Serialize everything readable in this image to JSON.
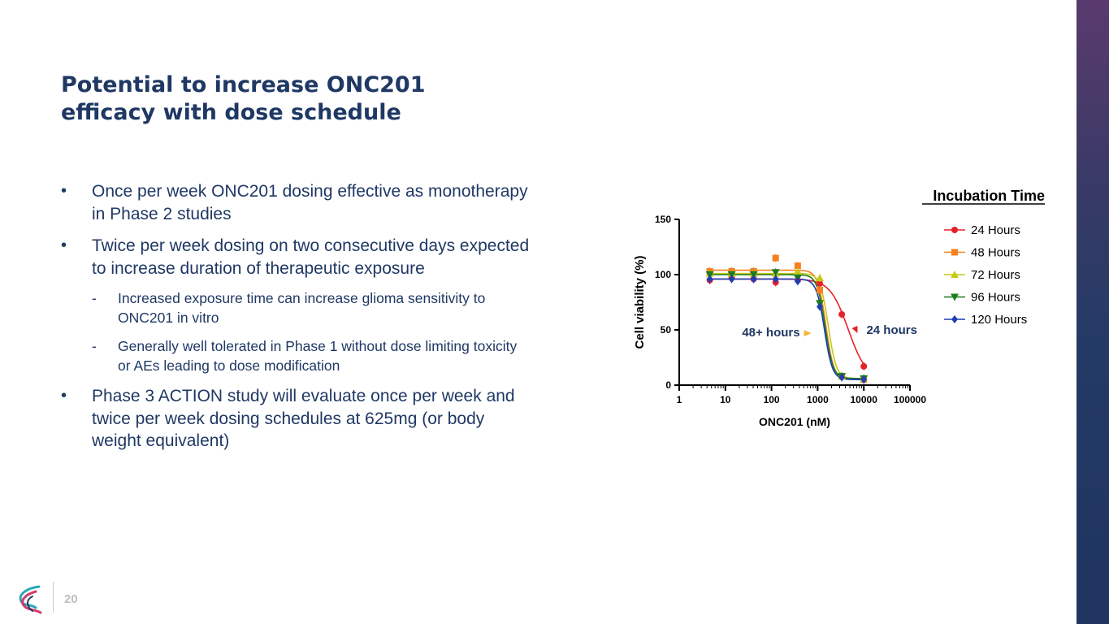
{
  "slide": {
    "title_line1": "Potential to increase ONC201",
    "title_line2": "efficacy with dose schedule",
    "page_number": "20"
  },
  "bullets": [
    {
      "text": "Once per week ONC201 dosing effective as monotherapy in Phase 2 studies"
    },
    {
      "text": "Twice per week dosing on two consecutive days expected to increase duration of therapeutic exposure"
    },
    {
      "text": "Phase 3 ACTION study will evaluate once per week and twice per week dosing schedules at 625mg (or body weight equivalent)"
    }
  ],
  "sub_bullets": [
    {
      "text": "Increased exposure time can increase glioma sensitivity to ONC201 in vitro"
    },
    {
      "text": "Generally well tolerated in Phase 1 without dose limiting toxicity or AEs leading to dose modification"
    }
  ],
  "glyphs": {
    "bullet": "•",
    "dash": "-"
  },
  "colors": {
    "title": "#1f3864",
    "text": "#1f3864",
    "side_bar_top": "#5a3a6e",
    "side_bar_bottom": "#1f3560"
  },
  "chart_data": {
    "type": "line",
    "xscale": "log",
    "xlabel": "ONC201 (nM)",
    "ylabel": "Cell viability (%)",
    "xlim": [
      1,
      100000
    ],
    "ylim": [
      0,
      150
    ],
    "xticks": [
      1,
      10,
      100,
      1000,
      10000,
      100000
    ],
    "xtick_labels": [
      "1",
      "10",
      "100",
      "1000",
      "10000",
      "100000"
    ],
    "yticks": [
      0,
      50,
      100,
      150
    ],
    "ytick_labels": [
      "0",
      "50",
      "100",
      "150"
    ],
    "legend_title": "Incubation Time",
    "legend_position": "top-right",
    "series": [
      {
        "name": "24 Hours",
        "color": "#e8202a",
        "marker": "circle",
        "x": [
          4.6,
          13.7,
          41,
          123,
          370,
          1111,
          3333,
          10000
        ],
        "y": [
          95,
          97,
          96,
          93,
          95,
          92,
          64,
          17
        ],
        "curve_top": 96,
        "curve_bottom": 5,
        "ic50": 4600,
        "hill": 2.2
      },
      {
        "name": "48 Hours",
        "color": "#f7801e",
        "marker": "square",
        "x": [
          4.6,
          13.7,
          41,
          123,
          370,
          1111,
          3333,
          10000
        ],
        "y": [
          103,
          103,
          103,
          115,
          108,
          86,
          8,
          5
        ],
        "curve_top": 104,
        "curve_bottom": 5,
        "ic50": 1500,
        "hill": 5
      },
      {
        "name": "72 Hours",
        "color": "#c8c819",
        "marker": "triangle-up",
        "x": [
          4.6,
          13.7,
          41,
          123,
          370,
          1111,
          3333,
          10000
        ],
        "y": [
          101,
          101,
          101,
          101,
          103,
          97,
          8,
          6
        ],
        "curve_top": 101,
        "curve_bottom": 6,
        "ic50": 1700,
        "hill": 5
      },
      {
        "name": "96 Hours",
        "color": "#1e7b1e",
        "marker": "triangle-down",
        "x": [
          4.6,
          13.7,
          41,
          123,
          370,
          1111,
          3333,
          10000
        ],
        "y": [
          100,
          100,
          100,
          102,
          97,
          74,
          8,
          6
        ],
        "curve_top": 100,
        "curve_bottom": 6,
        "ic50": 1450,
        "hill": 5
      },
      {
        "name": "120 Hours",
        "color": "#1f3fb5",
        "marker": "diamond",
        "x": [
          4.6,
          13.7,
          41,
          123,
          370,
          1111,
          3333,
          10000
        ],
        "y": [
          96,
          96,
          96,
          96,
          94,
          71,
          7,
          5
        ],
        "curve_top": 96,
        "curve_bottom": 5,
        "ic50": 1400,
        "hill": 5
      }
    ],
    "annotations": [
      {
        "text": "48+ hours",
        "color": "#1f3864",
        "arrow_color": "#f3b63c",
        "at": {
          "x": 620,
          "y": 47
        }
      },
      {
        "text": "24 hours",
        "color": "#1f3864",
        "arrow_color": "#e8202a",
        "at": {
          "x": 5500,
          "y": 50
        }
      }
    ]
  }
}
